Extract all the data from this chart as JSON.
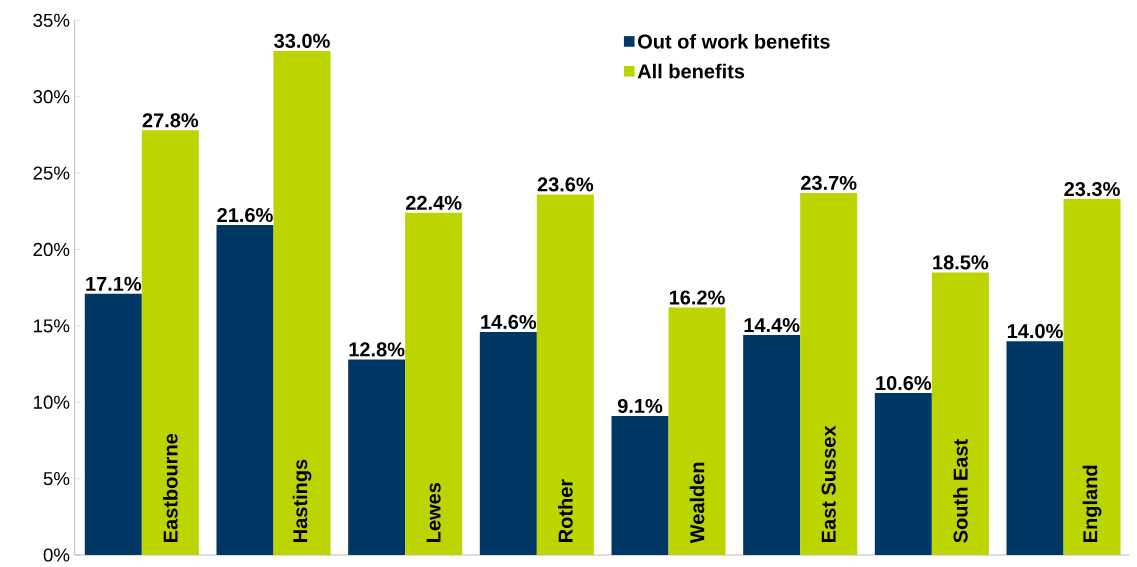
{
  "chart_data": {
    "type": "bar",
    "categories": [
      "Eastbourne",
      "Hastings",
      "Lewes",
      "Rother",
      "Wealden",
      "East Sussex",
      "South East",
      "England"
    ],
    "series": [
      {
        "name": "Out of work benefits",
        "color": "#003865",
        "values": [
          17.1,
          21.6,
          12.8,
          14.6,
          9.1,
          14.4,
          10.6,
          14.0
        ],
        "value_labels": [
          "17.1%",
          "21.6%",
          "12.8%",
          "14.6%",
          "9.1%",
          "14.4%",
          "10.6%",
          "14.0%"
        ]
      },
      {
        "name": "All benefits",
        "color": "#bcd400",
        "values": [
          27.8,
          33.0,
          22.4,
          23.6,
          16.2,
          23.7,
          18.5,
          23.3
        ],
        "value_labels": [
          "27.8%",
          "33.0%",
          "22.4%",
          "23.6%",
          "16.2%",
          "23.7%",
          "18.5%",
          "23.3%"
        ]
      }
    ],
    "ylim": [
      0,
      35
    ],
    "yticks": [
      {
        "value": 0,
        "label": "0%"
      },
      {
        "value": 5,
        "label": "5%"
      },
      {
        "value": 10,
        "label": "10%"
      },
      {
        "value": 15,
        "label": "15%"
      },
      {
        "value": 20,
        "label": "20%"
      },
      {
        "value": 25,
        "label": "25%"
      },
      {
        "value": 30,
        "label": "30%"
      },
      {
        "value": 35,
        "label": "35%"
      }
    ],
    "legend": "top",
    "grid": false
  }
}
